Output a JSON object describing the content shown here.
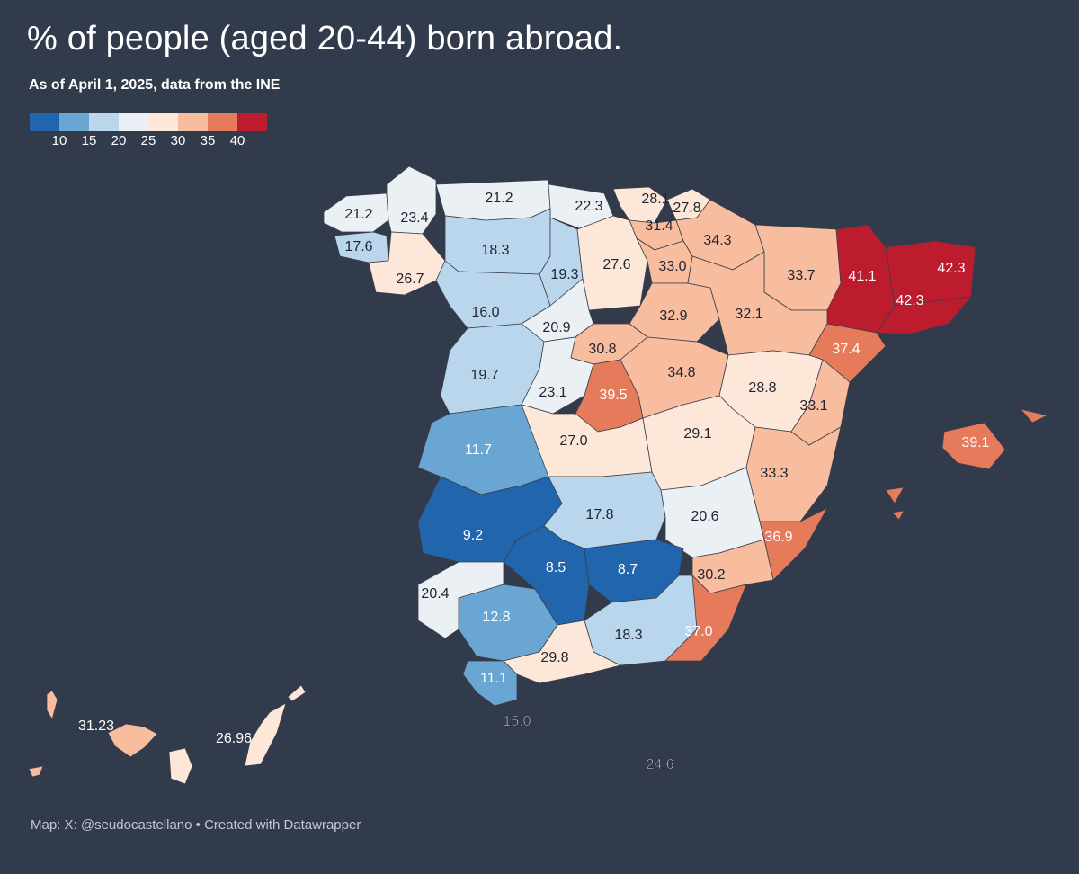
{
  "title": "% of people (aged 20-44) born abroad.",
  "subtitle": "As of April 1, 2025, data from the INE",
  "legend": {
    "colors": [
      "#2166ac",
      "#6aa6d3",
      "#b9d6ec",
      "#eaf0f3",
      "#fde7d8",
      "#f8bc9e",
      "#e67b5c",
      "#bd1b2e"
    ],
    "ticks": [
      "10",
      "15",
      "20",
      "25",
      "30",
      "35",
      "40"
    ]
  },
  "credit": "Map: X: @seudocastellano • Created with Datawrapper",
  "map_data": {
    "provinces": [
      {
        "id": "a-coruna",
        "value": "21.2"
      },
      {
        "id": "lugo",
        "value": "23.4"
      },
      {
        "id": "asturias",
        "value": "21.2"
      },
      {
        "id": "cantabria",
        "value": "22.3"
      },
      {
        "id": "bizkaia",
        "value": "28.1"
      },
      {
        "id": "gipuzkoa",
        "value": "27.8"
      },
      {
        "id": "araba",
        "value": "31.4"
      },
      {
        "id": "navarra",
        "value": "34.3"
      },
      {
        "id": "pontevedra",
        "value": "17.6"
      },
      {
        "id": "ourense",
        "value": "26.7"
      },
      {
        "id": "leon",
        "value": "18.3"
      },
      {
        "id": "palencia",
        "value": "19.3"
      },
      {
        "id": "burgos",
        "value": "27.6"
      },
      {
        "id": "la-rioja",
        "value": "33.0"
      },
      {
        "id": "huesca",
        "value": "33.7"
      },
      {
        "id": "lleida",
        "value": "41.1"
      },
      {
        "id": "girona",
        "value": "42.3"
      },
      {
        "id": "barcelona",
        "value": "42.3"
      },
      {
        "id": "zamora",
        "value": "16.0"
      },
      {
        "id": "valladolid",
        "value": "20.9"
      },
      {
        "id": "soria",
        "value": "32.9"
      },
      {
        "id": "zaragoza",
        "value": "32.1"
      },
      {
        "id": "segovia",
        "value": "30.8"
      },
      {
        "id": "tarragona",
        "value": "37.4"
      },
      {
        "id": "salamanca",
        "value": "19.7"
      },
      {
        "id": "avila",
        "value": "23.1"
      },
      {
        "id": "madrid",
        "value": "39.5"
      },
      {
        "id": "guadalajara",
        "value": "34.8"
      },
      {
        "id": "teruel",
        "value": "28.8"
      },
      {
        "id": "castellon",
        "value": "33.1"
      },
      {
        "id": "caceres",
        "value": "11.7"
      },
      {
        "id": "toledo",
        "value": "27.0"
      },
      {
        "id": "cuenca",
        "value": "29.1"
      },
      {
        "id": "baleares",
        "value": "39.1"
      },
      {
        "id": "valencia",
        "value": "33.3"
      },
      {
        "id": "badajoz",
        "value": "9.2"
      },
      {
        "id": "ciudad-real",
        "value": "17.8"
      },
      {
        "id": "albacete",
        "value": "20.6"
      },
      {
        "id": "alicante",
        "value": "36.9"
      },
      {
        "id": "cordoba",
        "value": "8.5"
      },
      {
        "id": "jaen",
        "value": "8.7"
      },
      {
        "id": "murcia",
        "value": "30.2"
      },
      {
        "id": "huelva",
        "value": "20.4"
      },
      {
        "id": "sevilla",
        "value": "12.8"
      },
      {
        "id": "granada",
        "value": "18.3"
      },
      {
        "id": "almeria",
        "value": "37.0"
      },
      {
        "id": "malaga",
        "value": "29.8"
      },
      {
        "id": "cadiz",
        "value": "11.1"
      },
      {
        "id": "ceuta",
        "value": "15.0"
      },
      {
        "id": "melilla",
        "value": "24.6"
      },
      {
        "id": "santa-cruz-de-tenerife",
        "value": "31.23"
      },
      {
        "id": "las-palmas",
        "value": "26.96"
      }
    ]
  }
}
